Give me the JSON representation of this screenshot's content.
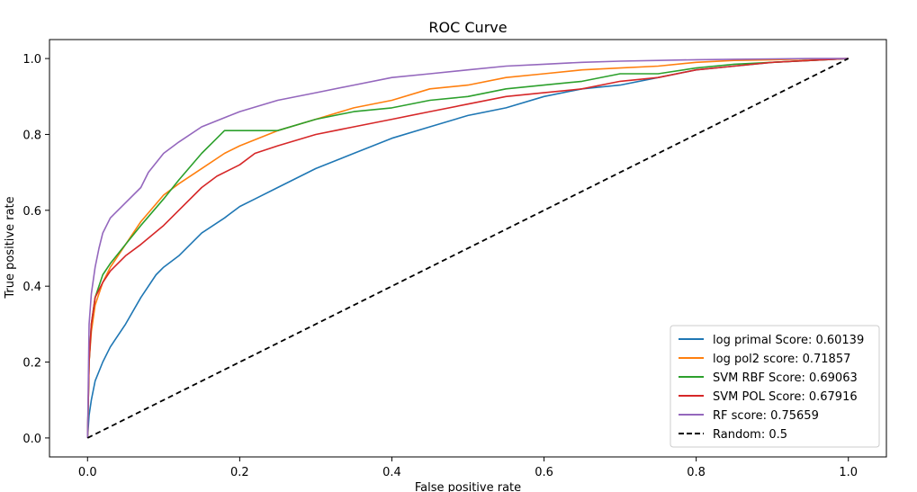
{
  "chart_data": {
    "type": "line",
    "title": "ROC Curve",
    "xlabel": "False positive rate",
    "ylabel": "True positive rate",
    "xlim": [
      -0.05,
      1.05
    ],
    "ylim": [
      -0.05,
      1.05
    ],
    "xticks": [
      0.0,
      0.2,
      0.4,
      0.6,
      0.8,
      1.0
    ],
    "xtick_labels": [
      "0.0",
      "0.2",
      "0.4",
      "0.6",
      "0.8",
      "1.0"
    ],
    "yticks": [
      0.0,
      0.2,
      0.4,
      0.6,
      0.8,
      1.0
    ],
    "ytick_labels": [
      "0.0",
      "0.2",
      "0.4",
      "0.6",
      "0.8",
      "1.0"
    ],
    "grid": false,
    "legend_position": "lower-right",
    "series": [
      {
        "name": "log primal Score: 0.60139",
        "color": "#1f77b4",
        "x": [
          0,
          0.002,
          0.005,
          0.01,
          0.02,
          0.03,
          0.05,
          0.07,
          0.09,
          0.1,
          0.12,
          0.15,
          0.18,
          0.2,
          0.22,
          0.25,
          0.3,
          0.35,
          0.4,
          0.45,
          0.5,
          0.55,
          0.6,
          0.65,
          0.7,
          0.75,
          0.8,
          0.85,
          0.9,
          0.95,
          1.0
        ],
        "y": [
          0,
          0.06,
          0.1,
          0.15,
          0.2,
          0.24,
          0.3,
          0.37,
          0.43,
          0.45,
          0.48,
          0.54,
          0.58,
          0.61,
          0.63,
          0.66,
          0.71,
          0.75,
          0.79,
          0.82,
          0.85,
          0.87,
          0.9,
          0.92,
          0.93,
          0.95,
          0.97,
          0.98,
          0.99,
          0.995,
          1.0
        ]
      },
      {
        "name": "log pol2 score: 0.71857",
        "color": "#ff7f0e",
        "x": [
          0,
          0.002,
          0.005,
          0.01,
          0.02,
          0.03,
          0.05,
          0.07,
          0.1,
          0.12,
          0.15,
          0.18,
          0.2,
          0.25,
          0.3,
          0.35,
          0.4,
          0.45,
          0.5,
          0.55,
          0.6,
          0.65,
          0.7,
          0.75,
          0.8,
          0.85,
          0.9,
          0.95,
          1.0
        ],
        "y": [
          0,
          0.2,
          0.28,
          0.35,
          0.41,
          0.45,
          0.51,
          0.57,
          0.64,
          0.67,
          0.71,
          0.75,
          0.77,
          0.81,
          0.84,
          0.87,
          0.89,
          0.92,
          0.93,
          0.95,
          0.96,
          0.97,
          0.975,
          0.98,
          0.99,
          0.995,
          0.997,
          0.999,
          1.0
        ]
      },
      {
        "name": "SVM RBF Score: 0.69063",
        "color": "#2ca02c",
        "x": [
          0,
          0.002,
          0.005,
          0.01,
          0.02,
          0.03,
          0.05,
          0.07,
          0.1,
          0.12,
          0.15,
          0.17,
          0.18,
          0.2,
          0.25,
          0.3,
          0.35,
          0.4,
          0.45,
          0.5,
          0.55,
          0.6,
          0.65,
          0.7,
          0.75,
          0.8,
          0.85,
          0.9,
          0.95,
          1.0
        ],
        "y": [
          0,
          0.2,
          0.3,
          0.37,
          0.43,
          0.46,
          0.51,
          0.56,
          0.63,
          0.68,
          0.75,
          0.79,
          0.81,
          0.81,
          0.81,
          0.84,
          0.86,
          0.87,
          0.89,
          0.9,
          0.92,
          0.93,
          0.94,
          0.96,
          0.96,
          0.975,
          0.985,
          0.99,
          0.995,
          1.0
        ]
      },
      {
        "name": "SVM POL Score: 0.67916",
        "color": "#d62728",
        "x": [
          0,
          0.002,
          0.005,
          0.01,
          0.02,
          0.03,
          0.05,
          0.07,
          0.1,
          0.12,
          0.15,
          0.17,
          0.2,
          0.22,
          0.25,
          0.3,
          0.35,
          0.4,
          0.45,
          0.5,
          0.55,
          0.6,
          0.65,
          0.7,
          0.75,
          0.8,
          0.85,
          0.9,
          0.95,
          1.0
        ],
        "y": [
          0,
          0.2,
          0.3,
          0.37,
          0.41,
          0.44,
          0.48,
          0.51,
          0.56,
          0.6,
          0.66,
          0.69,
          0.72,
          0.75,
          0.77,
          0.8,
          0.82,
          0.84,
          0.86,
          0.88,
          0.9,
          0.91,
          0.92,
          0.94,
          0.95,
          0.97,
          0.98,
          0.99,
          0.995,
          1.0
        ]
      },
      {
        "name": "RF score: 0.75659",
        "color": "#9467bd",
        "x": [
          0,
          0.002,
          0.005,
          0.01,
          0.015,
          0.02,
          0.03,
          0.05,
          0.07,
          0.08,
          0.1,
          0.12,
          0.15,
          0.2,
          0.25,
          0.3,
          0.35,
          0.4,
          0.45,
          0.5,
          0.55,
          0.6,
          0.65,
          0.7,
          0.75,
          0.8,
          0.85,
          0.9,
          0.95,
          1.0
        ],
        "y": [
          0,
          0.3,
          0.38,
          0.45,
          0.5,
          0.54,
          0.58,
          0.62,
          0.66,
          0.7,
          0.75,
          0.78,
          0.82,
          0.86,
          0.89,
          0.91,
          0.93,
          0.95,
          0.96,
          0.97,
          0.98,
          0.985,
          0.99,
          0.993,
          0.995,
          0.997,
          0.998,
          0.999,
          1.0,
          1.0
        ]
      },
      {
        "name": "Random: 0.5",
        "color": "#000000",
        "dashed": true,
        "x": [
          0,
          1
        ],
        "y": [
          0,
          1
        ]
      }
    ]
  }
}
